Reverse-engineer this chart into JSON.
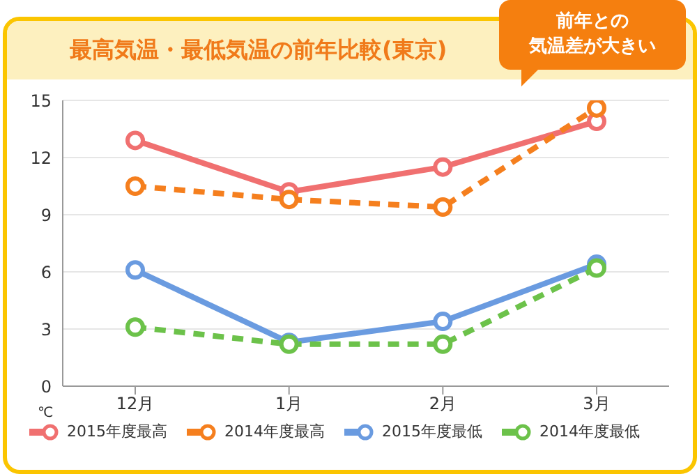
{
  "chart_data": {
    "type": "line",
    "title": "最高気温・最低気温の前年比較(東京)",
    "ylabel": "℃",
    "annotations": [
      "前年との",
      "気温差が大きい"
    ],
    "categories": [
      "12月",
      "1月",
      "2月",
      "3月"
    ],
    "ylim": [
      0,
      15
    ],
    "yticks": [
      0,
      3,
      6,
      9,
      12,
      15
    ],
    "grid": "y",
    "legend": "bottom",
    "marker": "circle",
    "series": [
      {
        "name": "2015年度最高",
        "color": "#f07070",
        "line_style": "solid",
        "values": [
          12.9,
          10.2,
          11.5,
          13.9
        ]
      },
      {
        "name": "2014年度最高",
        "color": "#f57f1e",
        "line_style": "dashed",
        "values": [
          10.5,
          9.8,
          9.4,
          14.6
        ]
      },
      {
        "name": "2015年度最低",
        "color": "#6a9be0",
        "line_style": "solid",
        "values": [
          6.1,
          2.3,
          3.4,
          6.4
        ]
      },
      {
        "name": "2014年度最低",
        "color": "#6cc24a",
        "line_style": "dashed",
        "values": [
          3.1,
          2.2,
          2.2,
          6.2
        ]
      }
    ]
  }
}
